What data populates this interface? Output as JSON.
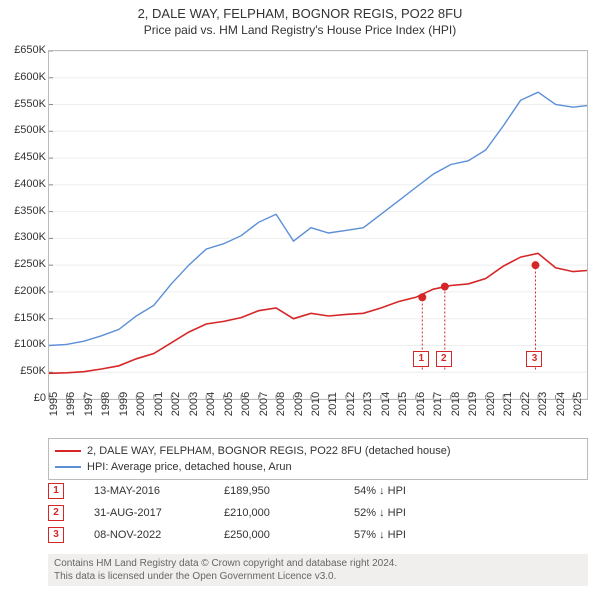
{
  "title": {
    "line1": "2, DALE WAY, FELPHAM, BOGNOR REGIS, PO22 8FU",
    "line2": "Price paid vs. HM Land Registry's House Price Index (HPI)"
  },
  "chart": {
    "type": "line",
    "background_color": "#ffffff",
    "border_color": "#bbbbbb",
    "ylim": [
      0,
      650000
    ],
    "ytick_step": 50000,
    "ytick_labels": [
      "£0",
      "£50K",
      "£100K",
      "£150K",
      "£200K",
      "£250K",
      "£300K",
      "£350K",
      "£400K",
      "£450K",
      "£500K",
      "£550K",
      "£600K",
      "£650K"
    ],
    "xlim": [
      1995,
      2025.8
    ],
    "xtick_step": 1,
    "xticks": [
      1995,
      1996,
      1997,
      1998,
      1999,
      2000,
      2001,
      2002,
      2003,
      2004,
      2005,
      2006,
      2007,
      2008,
      2009,
      2010,
      2011,
      2012,
      2013,
      2014,
      2015,
      2016,
      2017,
      2018,
      2019,
      2020,
      2021,
      2022,
      2023,
      2024,
      2025
    ],
    "series": [
      {
        "name": "property",
        "label": "2, DALE WAY, FELPHAM, BOGNOR REGIS, PO22 8FU (detached house)",
        "color": "#d62728",
        "line_width": 1.6,
        "points": [
          [
            1995,
            48000
          ],
          [
            1996,
            49000
          ],
          [
            1997,
            51000
          ],
          [
            1998,
            56000
          ],
          [
            1999,
            62000
          ],
          [
            2000,
            75000
          ],
          [
            2001,
            85000
          ],
          [
            2002,
            105000
          ],
          [
            2003,
            125000
          ],
          [
            2004,
            140000
          ],
          [
            2005,
            145000
          ],
          [
            2006,
            152000
          ],
          [
            2007,
            165000
          ],
          [
            2008,
            170000
          ],
          [
            2009,
            150000
          ],
          [
            2010,
            160000
          ],
          [
            2011,
            155000
          ],
          [
            2012,
            158000
          ],
          [
            2013,
            160000
          ],
          [
            2014,
            170000
          ],
          [
            2015,
            182000
          ],
          [
            2016,
            190000
          ],
          [
            2017,
            205000
          ],
          [
            2018,
            212000
          ],
          [
            2019,
            215000
          ],
          [
            2020,
            225000
          ],
          [
            2021,
            248000
          ],
          [
            2022,
            265000
          ],
          [
            2023,
            272000
          ],
          [
            2024,
            245000
          ],
          [
            2025,
            238000
          ],
          [
            2025.8,
            240000
          ]
        ]
      },
      {
        "name": "hpi",
        "label": "HPI: Average price, detached house, Arun",
        "color": "#5b8fd6",
        "line_width": 1.4,
        "points": [
          [
            1995,
            100000
          ],
          [
            1996,
            102000
          ],
          [
            1997,
            108000
          ],
          [
            1998,
            118000
          ],
          [
            1999,
            130000
          ],
          [
            2000,
            155000
          ],
          [
            2001,
            175000
          ],
          [
            2002,
            215000
          ],
          [
            2003,
            250000
          ],
          [
            2004,
            280000
          ],
          [
            2005,
            290000
          ],
          [
            2006,
            305000
          ],
          [
            2007,
            330000
          ],
          [
            2008,
            345000
          ],
          [
            2009,
            295000
          ],
          [
            2010,
            320000
          ],
          [
            2011,
            310000
          ],
          [
            2012,
            315000
          ],
          [
            2013,
            320000
          ],
          [
            2014,
            345000
          ],
          [
            2015,
            370000
          ],
          [
            2016,
            395000
          ],
          [
            2017,
            420000
          ],
          [
            2018,
            438000
          ],
          [
            2019,
            445000
          ],
          [
            2020,
            465000
          ],
          [
            2021,
            510000
          ],
          [
            2022,
            558000
          ],
          [
            2023,
            573000
          ],
          [
            2024,
            550000
          ],
          [
            2025,
            545000
          ],
          [
            2025.8,
            548000
          ]
        ]
      }
    ],
    "event_markers": [
      {
        "num": "1",
        "x": 2016.37,
        "y_top": 55000,
        "color": "#d62728",
        "dot_y": 189950
      },
      {
        "num": "2",
        "x": 2017.66,
        "y_top": 55000,
        "color": "#d62728",
        "dot_y": 210000
      },
      {
        "num": "3",
        "x": 2022.85,
        "y_top": 55000,
        "color": "#d62728",
        "dot_y": 250000
      }
    ],
    "marker_line_color": "#d62728",
    "marker_line_dash": "2,2"
  },
  "legend": {
    "rows": [
      {
        "color": "#d62728",
        "label": "2, DALE WAY, FELPHAM, BOGNOR REGIS, PO22 8FU (detached house)"
      },
      {
        "color": "#5b8fd6",
        "label": "HPI: Average price, detached house, Arun"
      }
    ]
  },
  "table": {
    "rows": [
      {
        "num": "1",
        "color": "#d62728",
        "date": "13-MAY-2016",
        "price": "£189,950",
        "delta": "54% ↓ HPI"
      },
      {
        "num": "2",
        "color": "#d62728",
        "date": "31-AUG-2017",
        "price": "£210,000",
        "delta": "52% ↓ HPI"
      },
      {
        "num": "3",
        "color": "#d62728",
        "date": "08-NOV-2022",
        "price": "£250,000",
        "delta": "57% ↓ HPI"
      }
    ]
  },
  "footer": {
    "line1": "Contains HM Land Registry data © Crown copyright and database right 2024.",
    "line2": "This data is licensed under the Open Government Licence v3.0."
  }
}
